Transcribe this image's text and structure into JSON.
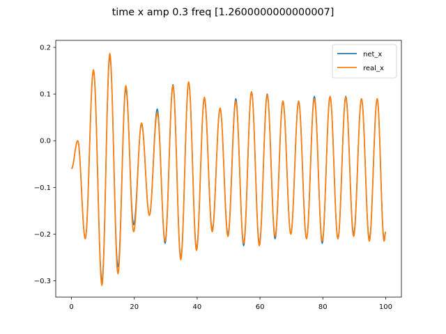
{
  "chart_data": {
    "type": "line",
    "title": "time x amp 0.3 freq [1.2600000000000007]",
    "xlabel": "",
    "ylabel": "",
    "xlim": [
      -5,
      105
    ],
    "ylim": [
      -0.335,
      0.215
    ],
    "xticks": [
      0,
      20,
      40,
      60,
      80,
      100
    ],
    "xtick_labels": [
      "0",
      "20",
      "40",
      "60",
      "80",
      "100"
    ],
    "yticks": [
      -0.3,
      -0.2,
      -0.1,
      0.0,
      0.1,
      0.2
    ],
    "ytick_labels": [
      "−0.3",
      "−0.2",
      "−0.1",
      "0.0",
      "0.1",
      "0.2"
    ],
    "grid": false,
    "legend_position": "upper right",
    "series": [
      {
        "name": "net_x",
        "color": "#1f77b4",
        "x": [
          0,
          2.0,
          4.4,
          7.0,
          9.7,
          12.2,
          14.8,
          17.3,
          19.8,
          22.3,
          24.8,
          27.3,
          29.8,
          32.3,
          34.8,
          37.3,
          39.8,
          42.3,
          44.8,
          47.3,
          49.8,
          52.3,
          54.8,
          57.3,
          59.8,
          62.3,
          64.8,
          67.3,
          69.8,
          72.3,
          74.8,
          77.3,
          79.8,
          82.3,
          84.8,
          87.3,
          89.8,
          92.3,
          94.8,
          97.3,
          99.5,
          100
        ],
        "y": [
          -0.06,
          0.0,
          -0.21,
          0.15,
          -0.3,
          0.18,
          -0.27,
          0.11,
          -0.18,
          0.035,
          -0.16,
          0.068,
          -0.22,
          0.12,
          -0.25,
          0.125,
          -0.23,
          0.09,
          -0.19,
          0.07,
          -0.2,
          0.09,
          -0.225,
          0.105,
          -0.22,
          0.1,
          -0.21,
          0.085,
          -0.2,
          0.085,
          -0.21,
          0.095,
          -0.22,
          0.095,
          -0.21,
          0.095,
          -0.2,
          0.09,
          -0.21,
          0.09,
          -0.21,
          -0.195
        ]
      },
      {
        "name": "real_x",
        "color": "#ff7f0e",
        "x": [
          0,
          2.0,
          4.4,
          7.0,
          9.7,
          12.2,
          14.8,
          17.3,
          19.8,
          22.3,
          24.8,
          27.3,
          29.8,
          32.3,
          34.8,
          37.3,
          39.8,
          42.3,
          44.8,
          47.3,
          49.8,
          52.3,
          54.8,
          57.3,
          59.8,
          62.3,
          64.8,
          67.3,
          69.8,
          72.3,
          74.8,
          77.3,
          79.8,
          82.3,
          84.8,
          87.3,
          89.8,
          92.3,
          94.8,
          97.3,
          99.5,
          100
        ],
        "y": [
          -0.06,
          0.0,
          -0.21,
          0.152,
          -0.31,
          0.187,
          -0.285,
          0.118,
          -0.195,
          0.038,
          -0.16,
          0.06,
          -0.215,
          0.118,
          -0.255,
          0.126,
          -0.235,
          0.093,
          -0.195,
          0.07,
          -0.205,
          0.085,
          -0.22,
          0.105,
          -0.225,
          0.098,
          -0.205,
          0.085,
          -0.2,
          0.084,
          -0.21,
          0.09,
          -0.215,
          0.095,
          -0.21,
          0.093,
          -0.205,
          0.09,
          -0.215,
          0.09,
          -0.215,
          -0.195
        ]
      }
    ]
  }
}
